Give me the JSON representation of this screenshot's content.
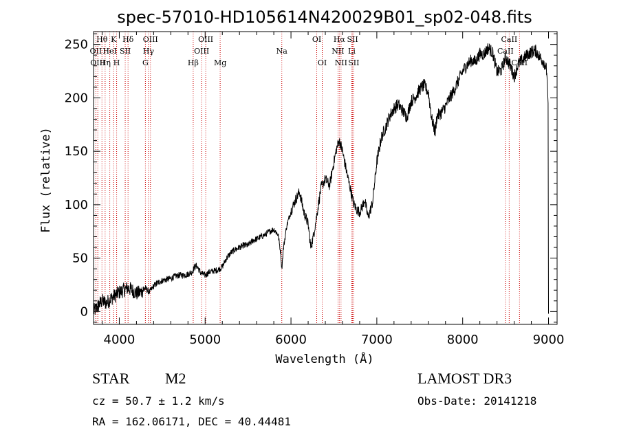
{
  "chart_data": {
    "type": "line",
    "title": "spec-57010-HD105614N420029B01_sp02-048.fits",
    "xlabel": "Wavelength (Å)",
    "ylabel": "Flux (relative)",
    "xlim": [
      3700,
      9100
    ],
    "ylim": [
      -12,
      262
    ],
    "xticks": [
      4000,
      5000,
      6000,
      7000,
      8000,
      9000
    ],
    "yticks": [
      0,
      50,
      100,
      150,
      200,
      250
    ],
    "series": [
      {
        "color": "#000000",
        "x": [
          3700,
          3750,
          3800,
          3850,
          3900,
          3950,
          4000,
          4050,
          4100,
          4150,
          4200,
          4250,
          4300,
          4350,
          4400,
          4450,
          4500,
          4550,
          4600,
          4650,
          4700,
          4750,
          4800,
          4850,
          4870,
          4900,
          4950,
          5000,
          5050,
          5100,
          5150,
          5200,
          5250,
          5300,
          5350,
          5400,
          5450,
          5500,
          5550,
          5600,
          5650,
          5700,
          5750,
          5800,
          5850,
          5880,
          5893,
          5910,
          5950,
          6000,
          6050,
          6100,
          6150,
          6200,
          6230,
          6260,
          6300,
          6350,
          6400,
          6450,
          6500,
          6530,
          6560,
          6580,
          6600,
          6620,
          6650,
          6700,
          6730,
          6760,
          6800,
          6830,
          6860,
          6880,
          6900,
          6950,
          7000,
          7050,
          7100,
          7150,
          7200,
          7250,
          7300,
          7350,
          7400,
          7450,
          7500,
          7550,
          7600,
          7640,
          7680,
          7700,
          7750,
          7800,
          7850,
          7900,
          7950,
          8000,
          8050,
          8100,
          8150,
          8200,
          8250,
          8300,
          8350,
          8400,
          8450,
          8500,
          8550,
          8600,
          8650,
          8700,
          8750,
          8800,
          8850,
          8900,
          8950,
          8980,
          8995,
          9000
        ],
        "y": [
          0,
          5,
          10,
          8,
          12,
          15,
          18,
          20,
          22,
          20,
          17,
          18,
          22,
          18,
          24,
          27,
          29,
          30,
          31,
          33,
          34,
          34,
          35,
          37,
          41,
          43,
          36,
          34,
          37,
          38,
          39,
          42,
          50,
          55,
          58,
          60,
          62,
          62,
          66,
          68,
          70,
          72,
          75,
          77,
          72,
          55,
          40,
          58,
          80,
          94,
          104,
          112,
          93,
          82,
          60,
          70,
          90,
          116,
          124,
          118,
          140,
          152,
          160,
          156,
          150,
          142,
          130,
          112,
          101,
          96,
          93,
          98,
          105,
          95,
          88,
          102,
          140,
          162,
          172,
          183,
          190,
          194,
          188,
          182,
          197,
          201,
          208,
          212,
          205,
          180,
          168,
          183,
          186,
          192,
          200,
          207,
          216,
          225,
          231,
          235,
          234,
          241,
          241,
          247,
          242,
          224,
          226,
          238,
          231,
          220,
          232,
          236,
          240,
          243,
          244,
          238,
          233,
          225,
          195,
          -2
        ]
      }
    ],
    "lines": [
      {
        "label": "Hθ",
        "x": 3798,
        "row": 1
      },
      {
        "label": "OII",
        "x": 3727,
        "row": 2
      },
      {
        "label": "OIII",
        "x": 3750,
        "row": 3
      },
      {
        "label": "K",
        "x": 3934,
        "row": 1
      },
      {
        "label": "HeI",
        "x": 3889,
        "row": 2
      },
      {
        "label": "Hη",
        "x": 3835,
        "row": 3
      },
      {
        "label": "SII",
        "x": 4069,
        "row": 2
      },
      {
        "label": "H",
        "x": 3969,
        "row": 3
      },
      {
        "label": "Hδ",
        "x": 4102,
        "row": 1
      },
      {
        "label": "OIII",
        "x": 4363,
        "row": 1
      },
      {
        "label": "Hγ",
        "x": 4340,
        "row": 2
      },
      {
        "label": "G",
        "x": 4304,
        "row": 3
      },
      {
        "label": "Hβ",
        "x": 4861,
        "row": 3
      },
      {
        "label": "OIII",
        "x": 5007,
        "row": 1
      },
      {
        "label": "OIII",
        "x": 4959,
        "row": 2
      },
      {
        "label": "Mg",
        "x": 5175,
        "row": 3
      },
      {
        "label": "Na",
        "x": 5893,
        "row": 2
      },
      {
        "label": "OI",
        "x": 6300,
        "row": 1
      },
      {
        "label": "OI",
        "x": 6364,
        "row": 3
      },
      {
        "label": "Hα",
        "x": 6563,
        "row": 1
      },
      {
        "label": "NII",
        "x": 6548,
        "row": 2
      },
      {
        "label": "NII",
        "x": 6583,
        "row": 3
      },
      {
        "label": "SII",
        "x": 6717,
        "row": 1
      },
      {
        "label": "Li",
        "x": 6708,
        "row": 2
      },
      {
        "label": "SII",
        "x": 6731,
        "row": 3
      },
      {
        "label": "CaII",
        "x": 8542,
        "row": 1
      },
      {
        "label": "CaII",
        "x": 8498,
        "row": 2
      },
      {
        "label": "CaII",
        "x": 8662,
        "row": 3
      }
    ],
    "line_color": "#cc0000",
    "grid": false
  },
  "info": {
    "class": "STAR",
    "subclass": "M2",
    "survey": "LAMOST DR3",
    "cz": "cz = 50.7 ± 1.2 km/s",
    "obs_date": "Obs-Date: 20141218",
    "radec": "RA = 162.06171, DEC =  40.44481"
  }
}
